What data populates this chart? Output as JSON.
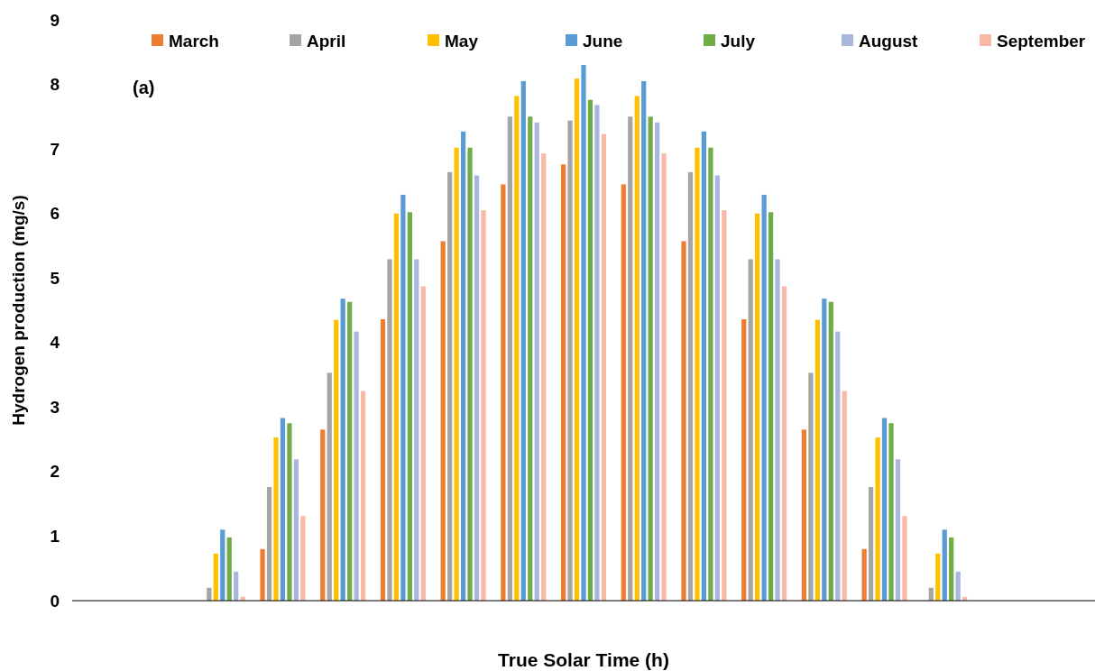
{
  "chart_data": {
    "type": "bar",
    "xlabel": "True Solar Time (h)",
    "ylabel": "Hydrogen production (mg/s)",
    "annotations": [
      "(a)"
    ],
    "categories": [
      null,
      null,
      null,
      null,
      null,
      null,
      null,
      null,
      null,
      null,
      null,
      null,
      null,
      null,
      null,
      null,
      null
    ],
    "ylim": [
      0,
      9
    ],
    "yticks": [
      0,
      1,
      2,
      3,
      4,
      5,
      6,
      7,
      8,
      9
    ],
    "grid": false,
    "legend": "top",
    "series": [
      {
        "name": "March",
        "color": "#ed7d31",
        "values": [
          0,
          0,
          0,
          0.8,
          2.65,
          4.36,
          5.57,
          6.45,
          6.76,
          6.45,
          5.57,
          4.36,
          2.65,
          0.8,
          0,
          0,
          0
        ]
      },
      {
        "name": "April",
        "color": "#a5a5a5",
        "values": [
          0,
          0,
          0.2,
          1.76,
          3.53,
          5.29,
          6.64,
          7.5,
          7.44,
          7.5,
          6.64,
          5.29,
          3.53,
          1.76,
          0.2,
          0,
          0
        ]
      },
      {
        "name": "May",
        "color": "#ffc000",
        "values": [
          0,
          0,
          0.73,
          2.53,
          4.35,
          6.0,
          7.02,
          7.82,
          8.09,
          7.82,
          7.02,
          6.0,
          4.35,
          2.53,
          0.73,
          0,
          0
        ]
      },
      {
        "name": "June",
        "color": "#5b9bd5",
        "values": [
          0,
          0,
          1.1,
          2.83,
          4.68,
          6.29,
          7.27,
          8.05,
          8.3,
          8.05,
          7.27,
          6.29,
          4.68,
          2.83,
          1.1,
          0,
          0
        ]
      },
      {
        "name": "July",
        "color": "#70ad47",
        "values": [
          0,
          0,
          0.98,
          2.75,
          4.63,
          6.02,
          7.02,
          7.5,
          7.76,
          7.5,
          7.02,
          6.02,
          4.63,
          2.75,
          0.98,
          0,
          0
        ]
      },
      {
        "name": "August",
        "color": "#a9b6de",
        "values": [
          0,
          0,
          0.45,
          2.19,
          4.17,
          5.29,
          6.59,
          7.41,
          7.68,
          7.41,
          6.59,
          5.29,
          4.17,
          2.19,
          0.45,
          0,
          0
        ]
      },
      {
        "name": "September",
        "color": "#f8b9a6",
        "values": [
          0,
          0,
          0.06,
          1.31,
          3.25,
          4.87,
          6.05,
          6.93,
          7.23,
          6.93,
          6.05,
          4.87,
          3.25,
          1.31,
          0.06,
          0,
          0
        ]
      }
    ]
  }
}
